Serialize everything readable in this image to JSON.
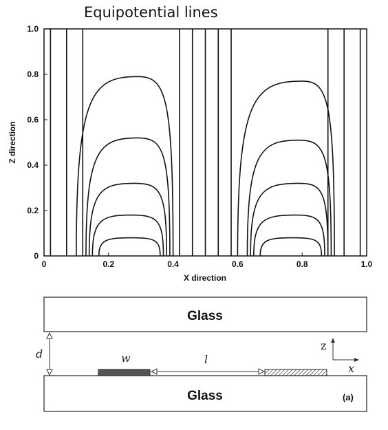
{
  "title": "Equipotential lines",
  "chart_data": {
    "type": "line",
    "title": "Equipotential lines",
    "xlabel": "X direction",
    "ylabel": "Z direction",
    "xlim": [
      0,
      1
    ],
    "ylim": [
      0,
      1
    ],
    "x_ticks": [
      "0",
      "0.2",
      "0.4",
      "0.6",
      "0.8",
      "1.0"
    ],
    "y_ticks": [
      "0",
      "0.2",
      "0.4",
      "0.6",
      "0.8",
      "1.0"
    ],
    "grid": false,
    "vertical_lines_x": [
      0.02,
      0.07,
      0.12,
      0.42,
      0.46,
      0.5,
      0.54,
      0.58,
      0.88,
      0.93,
      0.98
    ],
    "loops": [
      {
        "center": 0.27,
        "left": 0.17,
        "right": 0.36,
        "top": 0.08
      },
      {
        "center": 0.27,
        "left": 0.15,
        "right": 0.37,
        "top": 0.18
      },
      {
        "center": 0.28,
        "left": 0.14,
        "right": 0.38,
        "top": 0.32
      },
      {
        "center": 0.29,
        "left": 0.13,
        "right": 0.39,
        "top": 0.52
      },
      {
        "center": 0.29,
        "left": 0.1,
        "right": 0.4,
        "top": 0.79
      },
      {
        "center": 0.77,
        "left": 0.67,
        "right": 0.86,
        "top": 0.08
      },
      {
        "center": 0.78,
        "left": 0.65,
        "right": 0.87,
        "top": 0.18
      },
      {
        "center": 0.79,
        "left": 0.64,
        "right": 0.88,
        "top": 0.32
      },
      {
        "center": 0.79,
        "left": 0.63,
        "right": 0.89,
        "top": 0.51
      },
      {
        "center": 0.8,
        "left": 0.6,
        "right": 0.9,
        "top": 0.77
      }
    ]
  },
  "diagram": {
    "top_glass_label": "Glass",
    "bottom_glass_label": "Glass",
    "d_label": "d",
    "w_label": "w",
    "l_label": "l",
    "z_label": "z",
    "x_label": "x",
    "panel_tag": "(a)"
  }
}
